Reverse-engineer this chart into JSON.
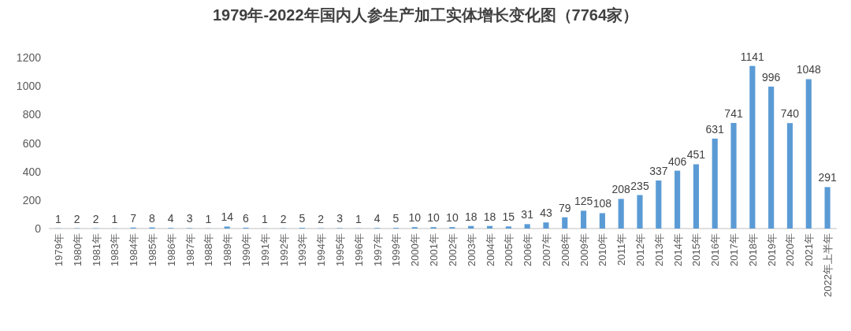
{
  "chart_data": {
    "type": "bar",
    "title": "1979年-2022年国内人参生产加工实体增长变化图（7764家）",
    "categories": [
      "1979年",
      "1980年",
      "1981年",
      "1983年",
      "1984年",
      "1985年",
      "1986年",
      "1987年",
      "1988年",
      "1989年",
      "1990年",
      "1991年",
      "1992年",
      "1993年",
      "1994年",
      "1995年",
      "1996年",
      "1997年",
      "1999年",
      "2000年",
      "2001年",
      "2002年",
      "2003年",
      "2004年",
      "2005年",
      "2006年",
      "2007年",
      "2008年",
      "2009年",
      "2010年",
      "2011年",
      "2012年",
      "2013年",
      "2014年",
      "2015年",
      "2016年",
      "2017年",
      "2018年",
      "2019年",
      "2020年",
      "2021年",
      "2022年上半年"
    ],
    "values": [
      1,
      2,
      2,
      1,
      7,
      8,
      4,
      3,
      1,
      14,
      6,
      1,
      2,
      5,
      2,
      3,
      1,
      4,
      5,
      10,
      10,
      10,
      18,
      18,
      15,
      31,
      43,
      79,
      125,
      108,
      208,
      235,
      337,
      406,
      451,
      631,
      741,
      1141,
      996,
      740,
      1048,
      291
    ],
    "color": "#5b9bd5",
    "ylim": [
      0,
      1200
    ],
    "yticks": [
      0,
      200,
      400,
      600,
      800,
      1000,
      1200
    ],
    "data_labels": true,
    "grid": false
  }
}
